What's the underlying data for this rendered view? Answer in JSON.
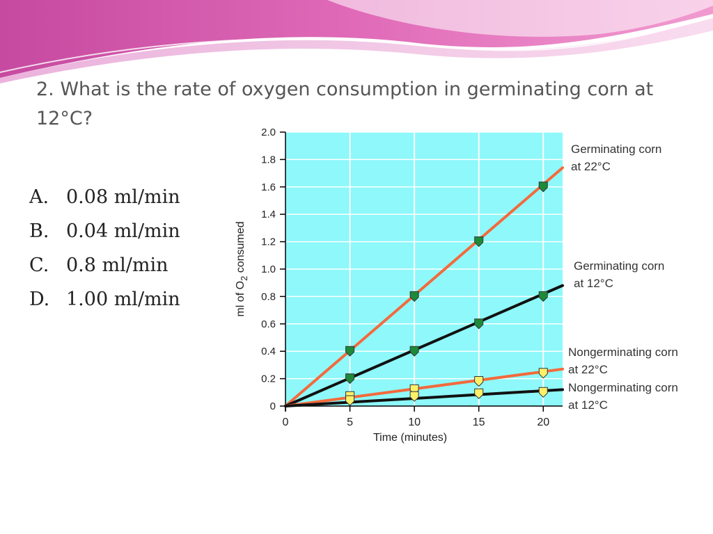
{
  "slide": {
    "question": "2. What is the rate of oxygen consumption in germinating corn at 12°C?",
    "answers": [
      {
        "letter": "A.",
        "text": "0.08 ml/min"
      },
      {
        "letter": "B.",
        "text": "0.04 ml/min"
      },
      {
        "letter": "C.",
        "text": "0.8 ml/min"
      },
      {
        "letter": "D.",
        "text": "1.00 ml/min"
      }
    ]
  },
  "colors": {
    "plot_background": "#8ef8fa",
    "grid": "#ffffff",
    "line_orange": "#f36a3c",
    "line_black": "#111111",
    "marker_green": "#1d8a3a",
    "marker_yellow": "#fff06a"
  },
  "chart_data": {
    "type": "line",
    "xlabel": "Time (minutes)",
    "ylabel_main": "ml of O",
    "ylabel_sub": "2",
    "ylabel_end": " consumed",
    "xlim": [
      0,
      21.5
    ],
    "ylim": [
      0,
      2.0
    ],
    "x_ticks": [
      0,
      5,
      10,
      15,
      20
    ],
    "y_ticks": [
      0,
      0.2,
      0.4,
      0.6,
      0.8,
      1.0,
      1.2,
      1.4,
      1.6,
      1.8,
      2.0
    ],
    "y_tick_labels": [
      "0",
      "0.2",
      "0.4",
      "0.6",
      "0.8",
      "1.0",
      "1.2",
      "1.4",
      "1.6",
      "1.8",
      "2.0"
    ],
    "x_tick_labels": [
      "0",
      "5",
      "10",
      "15",
      "20"
    ],
    "grid": true,
    "series": [
      {
        "label_line1": "Germinating corn",
        "label_line2": "at 22°C",
        "line_end": [
          21.5,
          1.74
        ],
        "x": [
          5,
          10,
          15,
          20
        ],
        "values": [
          0.4,
          0.8,
          1.2,
          1.6
        ],
        "line_color": "orange",
        "marker": "green"
      },
      {
        "label_line1": "Germinating corn",
        "label_line2": "at 12°C",
        "line_end": [
          21.5,
          0.88
        ],
        "x": [
          5,
          10,
          15,
          20
        ],
        "values": [
          0.2,
          0.4,
          0.6,
          0.8
        ],
        "line_color": "black",
        "marker": "green"
      },
      {
        "label_line1": "Nongerminating corn",
        "label_line2": "at 22°C",
        "line_end": [
          21.5,
          0.27
        ],
        "x": [
          5,
          10,
          15,
          20
        ],
        "values": [
          0.07,
          0.12,
          0.18,
          0.24
        ],
        "line_color": "orange",
        "marker": "yellow"
      },
      {
        "label_line1": "Nongerminating corn",
        "label_line2": "at 12°C",
        "line_end": [
          21.5,
          0.12
        ],
        "x": [
          5,
          10,
          15,
          20
        ],
        "values": [
          0.04,
          0.07,
          0.09,
          0.1
        ],
        "line_color": "black",
        "marker": "yellow"
      }
    ]
  }
}
